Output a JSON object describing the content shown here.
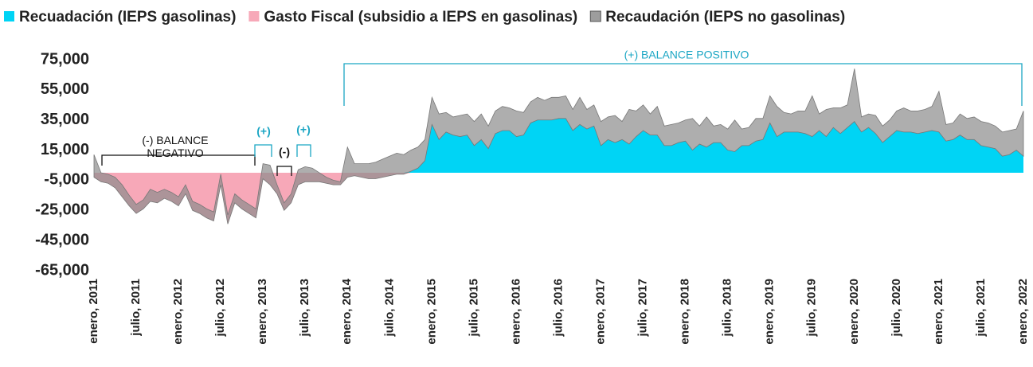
{
  "chart_data": {
    "type": "area",
    "series": [
      {
        "name": "Recuadación (IEPS gasolinas)",
        "color": "#00d4f5",
        "values": [
          0,
          0,
          0,
          0,
          0,
          0,
          0,
          0,
          0,
          0,
          0,
          0,
          0,
          0,
          0,
          0,
          0,
          0,
          0,
          0,
          0,
          0,
          0,
          0,
          0,
          0,
          0,
          0,
          0,
          0,
          0,
          0,
          0,
          0,
          0,
          0,
          0,
          0,
          0,
          0,
          0,
          0,
          0,
          0,
          0,
          1000,
          3000,
          8000,
          32000,
          22000,
          27000,
          25000,
          24000,
          25000,
          18000,
          22000,
          16000,
          26000,
          28000,
          28000,
          24000,
          25000,
          33000,
          35000,
          35000,
          35000,
          36000,
          36000,
          28000,
          32000,
          29000,
          31000,
          18000,
          22000,
          20000,
          22000,
          19000,
          24000,
          28000,
          25000,
          25000,
          18000,
          18000,
          20000,
          21000,
          15000,
          19000,
          17000,
          20000,
          20000,
          15000,
          14000,
          18000,
          18000,
          21000,
          22000,
          33000,
          24000,
          27000,
          27000,
          27000,
          26000,
          24000,
          28000,
          24000,
          30000,
          26000,
          30000,
          34000,
          27000,
          30000,
          26000,
          20000,
          24000,
          28000,
          27000,
          27000,
          26000,
          27000,
          28000,
          27000,
          21000,
          22000,
          25000,
          22000,
          22000,
          18000,
          17000,
          16000,
          11000,
          12000,
          15000,
          11000
        ]
      },
      {
        "name": "Gasto Fiscal (subsidio a IEPS en gasolinas)",
        "color": "#f7a8b8",
        "values": [
          -3000,
          -6000,
          -7000,
          -10000,
          -16000,
          -22000,
          -27000,
          -24000,
          -19000,
          -20000,
          -17000,
          -19000,
          -22000,
          -14000,
          -25000,
          -27000,
          -30000,
          -32000,
          -8000,
          -34000,
          -20000,
          -24000,
          -27000,
          -30000,
          -4000,
          -8000,
          -14000,
          -25000,
          -20000,
          -8000,
          -6000,
          -6000,
          -6000,
          -7000,
          -8000,
          -8000,
          -3000,
          -2000,
          -3000,
          -4000,
          -4000,
          -3000,
          -2000,
          -1000,
          -1000,
          0,
          0,
          0,
          0,
          0,
          0,
          0,
          0,
          0,
          0,
          0,
          0,
          0,
          0,
          0,
          0,
          0,
          0,
          0,
          0,
          0,
          0,
          0,
          0,
          0,
          0,
          0,
          0,
          0,
          0,
          0,
          0,
          0,
          0,
          0,
          0,
          0,
          0,
          0,
          0,
          0,
          0,
          0,
          0,
          0,
          0,
          0,
          0,
          0,
          0,
          0,
          0,
          0,
          0,
          0,
          0,
          0,
          0,
          0,
          0,
          0,
          0,
          0,
          0,
          0,
          0,
          0,
          0,
          0,
          0,
          0,
          0,
          0,
          0,
          0,
          0,
          0,
          0,
          0,
          0,
          0,
          0,
          0,
          0,
          0,
          0,
          0,
          0
        ]
      },
      {
        "name": "Recaudación (IEPS no gasolinas)",
        "color": "#8c8c8c",
        "values": [
          15000,
          6000,
          6000,
          7000,
          8000,
          7000,
          6000,
          6000,
          8000,
          7000,
          6000,
          6000,
          6000,
          6000,
          6000,
          6000,
          6000,
          6000,
          7000,
          6000,
          6000,
          6000,
          6000,
          6000,
          10000,
          13000,
          6000,
          5000,
          6000,
          10000,
          10000,
          9000,
          6000,
          4000,
          3000,
          2000,
          20000,
          8000,
          9000,
          10000,
          11000,
          12000,
          13000,
          14000,
          13000,
          14000,
          14000,
          14000,
          18000,
          17000,
          13000,
          12000,
          14000,
          14000,
          16000,
          17000,
          15000,
          15000,
          16000,
          15000,
          17000,
          15000,
          14000,
          15000,
          13000,
          15000,
          14000,
          15000,
          14000,
          18000,
          13000,
          14000,
          16000,
          15000,
          18000,
          12000,
          23000,
          17000,
          17000,
          14000,
          19000,
          13000,
          14000,
          13000,
          14000,
          21000,
          12000,
          20000,
          11000,
          12000,
          14000,
          21000,
          11000,
          12000,
          15000,
          14000,
          18000,
          20000,
          13000,
          12000,
          14000,
          15000,
          27000,
          11000,
          18000,
          13000,
          17000,
          15000,
          35000,
          10000,
          9000,
          12000,
          11000,
          11000,
          13000,
          16000,
          14000,
          15000,
          15000,
          16000,
          27000,
          11000,
          11000,
          14000,
          14000,
          15000,
          16000,
          16000,
          15000,
          16000,
          16000,
          14000,
          30000
        ]
      }
    ],
    "categories": [
      "enero, 2011",
      null,
      null,
      null,
      null,
      null,
      "julio, 2011",
      null,
      null,
      null,
      null,
      null,
      "enero, 2012",
      null,
      null,
      null,
      null,
      null,
      "julio, 2012",
      null,
      null,
      null,
      null,
      null,
      "enero, 2013",
      null,
      null,
      null,
      null,
      null,
      "julio, 2013",
      null,
      null,
      null,
      null,
      null,
      "enero, 2014",
      null,
      null,
      null,
      null,
      null,
      "julio, 2014",
      null,
      null,
      null,
      null,
      null,
      "enero, 2015",
      null,
      null,
      null,
      null,
      null,
      "julio, 2015",
      null,
      null,
      null,
      null,
      null,
      "enero, 2016",
      null,
      null,
      null,
      null,
      null,
      "julio, 2016",
      null,
      null,
      null,
      null,
      null,
      "enero, 2017",
      null,
      null,
      null,
      null,
      null,
      "julio, 2017",
      null,
      null,
      null,
      null,
      null,
      "enero, 2018",
      null,
      null,
      null,
      null,
      null,
      "julio, 2018",
      null,
      null,
      null,
      null,
      null,
      "enero, 2019",
      null,
      null,
      null,
      null,
      null,
      "julio, 2019",
      null,
      null,
      null,
      null,
      null,
      "enero, 2020",
      null,
      null,
      null,
      null,
      null,
      "julio, 2020",
      null,
      null,
      null,
      null,
      null,
      "enero, 2021",
      null,
      null,
      null,
      null,
      null,
      "julio, 2021",
      null,
      null,
      null,
      null,
      null,
      "enero, 2022"
    ],
    "ylim": [
      -65000,
      75000
    ],
    "yticks": [
      {
        "value": -65000,
        "label": "-65,000"
      },
      {
        "value": -45000,
        "label": "-45,000"
      },
      {
        "value": -25000,
        "label": "-25,000"
      },
      {
        "value": -5000,
        "label": "-5,000"
      },
      {
        "value": 15000,
        "label": "15,000"
      },
      {
        "value": 35000,
        "label": "35,000"
      },
      {
        "value": 55000,
        "label": "55,000"
      },
      {
        "value": 75000,
        "label": "75,000"
      }
    ],
    "annotations": [
      "(-) BALANCE NEGATIVO",
      "(+)",
      "(-)",
      "(+)",
      "(+) BALANCE POSITIVO"
    ],
    "legend": "top"
  }
}
